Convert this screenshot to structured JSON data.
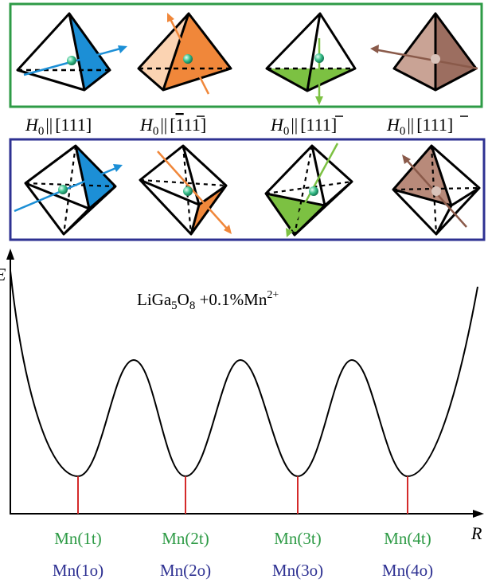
{
  "colors": {
    "tetra_frame": "#2e9b46",
    "octa_frame": "#2e3192",
    "tet_label": "#2e9b46",
    "oct_label": "#2e3192",
    "well_marker": "#d42a2a",
    "blue": "#1c8fd6",
    "orange": "#f0873a",
    "green": "#7cc142",
    "brown": "#b88a7a"
  },
  "field_labels": {
    "h": "H",
    "h_sub": "0",
    "par": "||",
    "items": [
      {
        "pre": "[111]",
        "bar": "",
        "post": ""
      },
      {
        "pre": "[",
        "bar": "1",
        "post": "11]"
      },
      {
        "pre": "[1",
        "bar": "1",
        "post": "1]"
      },
      {
        "pre": "[11",
        "bar": "1",
        "post": "]"
      }
    ]
  },
  "formula": {
    "a": "LiGa",
    "a_sub": "5",
    "b": "O",
    "b_sub": "8",
    "c": " +0.1%Mn",
    "c_sup": "2+"
  },
  "axis": {
    "y_label": "E",
    "x_label": "R"
  },
  "wells": [
    {
      "tet": "Mn(1t)",
      "oct": "Mn(1o)"
    },
    {
      "tet": "Mn(2t)",
      "oct": "Mn(2o)"
    },
    {
      "tet": "Mn(3t)",
      "oct": "Mn(3o)"
    },
    {
      "tet": "Mn(4t)",
      "oct": "Mn(4o)"
    }
  ],
  "icons": {
    "tetrahedra": [
      "tetrahedron-blue-icon",
      "tetrahedron-orange-icon",
      "tetrahedron-green-icon",
      "tetrahedron-brown-icon"
    ],
    "octahedra": [
      "octahedron-blue-icon",
      "octahedron-orange-icon",
      "octahedron-green-icon",
      "octahedron-brown-icon"
    ]
  }
}
